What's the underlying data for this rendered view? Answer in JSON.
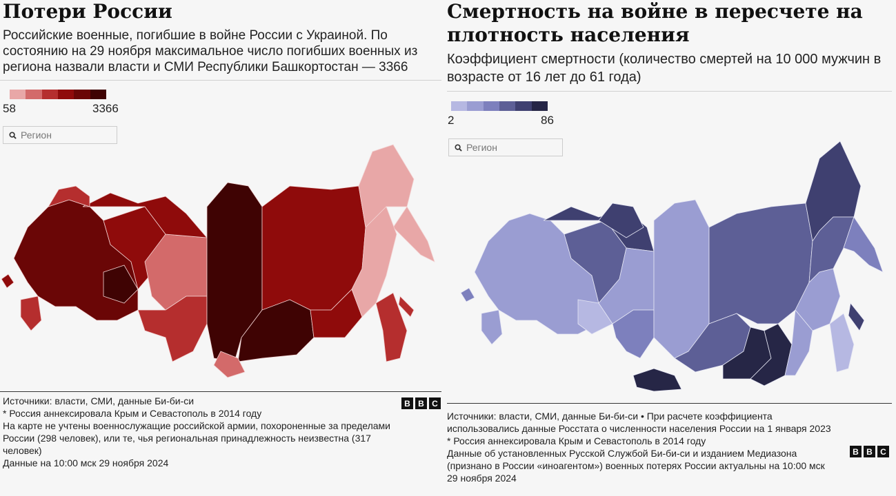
{
  "left": {
    "title": "Потери России",
    "subtitle": "Российские военные, погибшие в войне России с Украиной. По состоянию на 29 ноября максимальное число погибших военных из региона назвали власти и СМИ Республики Башкортостан — 3366",
    "legend": {
      "min": "58",
      "max": "3366",
      "colors": [
        "#e8a7a7",
        "#d36a6a",
        "#b52e2e",
        "#8f0b0b",
        "#6a0606",
        "#3f0303"
      ]
    },
    "search_placeholder": "Регион",
    "notes": [
      "Источники: власти, СМИ, данные Би-би-си",
      "* Россия аннексировала Крым и Севастополь в 2014 году",
      "На карте не учтены военнослужащие российской армии, похороненные за пределами России (298 человек), или те, чья региональная принадлежность неизвестна (317 человек)",
      "Данные на 10:00 мск 29 ноября 2024"
    ]
  },
  "right": {
    "title": "Смертность на войне в пересчете на плотность населения",
    "subtitle": "Коэффициент смертности (количество смертей на 10 000 мужчин в возрасте от 16 лет до 61 года)",
    "legend": {
      "min": "2",
      "max": "86",
      "colors": [
        "#b6b8e2",
        "#9a9dd2",
        "#7d80bd",
        "#5d5f96",
        "#3f4070",
        "#262646"
      ]
    },
    "search_placeholder": "Регион",
    "notes": [
      "Источники: власти, СМИ, данные Би-би-си • При расчете коэффициента использовались данные Росстата о численности населения России на 1 января 2023",
      "* Россия аннексировала Крым и Севастополь в 2014 году",
      "Данные об установленных Русской Службой Би-би-си и изданием Медиазона (признано в России «иноагентом») военных потерях России актуальны на 10:00 мск 29 ноября 2024"
    ]
  },
  "bbc_logo": [
    "B",
    "B",
    "C"
  ]
}
